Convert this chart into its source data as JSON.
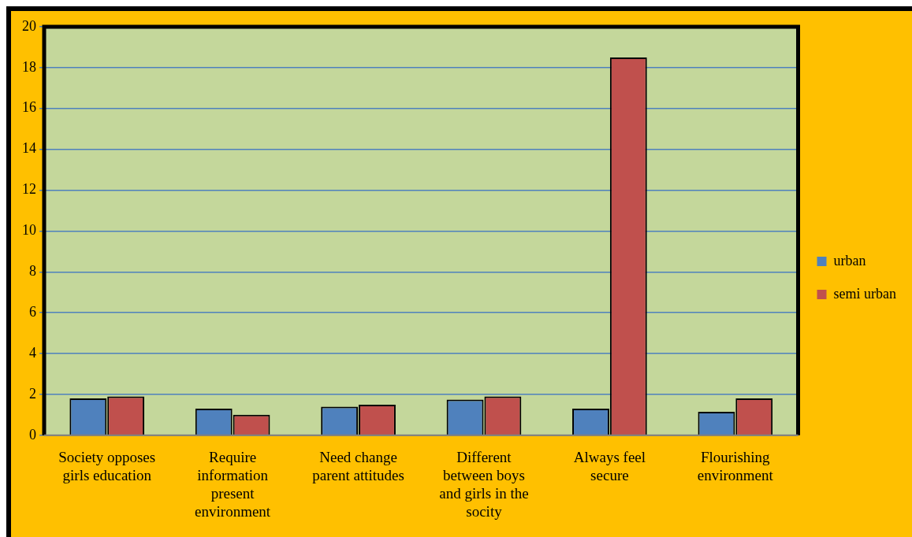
{
  "chart_data": {
    "type": "bar",
    "categories": [
      "Society opposes girls education",
      "Require information present environment",
      "Need change parent attitudes",
      "Different between boys and girls  in the socity",
      "Always feel secure",
      "Flourishing environment"
    ],
    "series": [
      {
        "name": "urban",
        "color": "#4f81bd",
        "values": [
          1.8,
          1.3,
          1.4,
          1.75,
          1.3,
          1.15
        ]
      },
      {
        "name": "semi urban",
        "color": "#c0504d",
        "values": [
          1.9,
          1.0,
          1.5,
          1.9,
          18.5,
          1.8
        ]
      }
    ],
    "ylim": [
      0,
      20
    ],
    "yticks": [
      0,
      2,
      4,
      6,
      8,
      10,
      12,
      14,
      16,
      18,
      20
    ],
    "grid": "y",
    "legend": "right"
  }
}
